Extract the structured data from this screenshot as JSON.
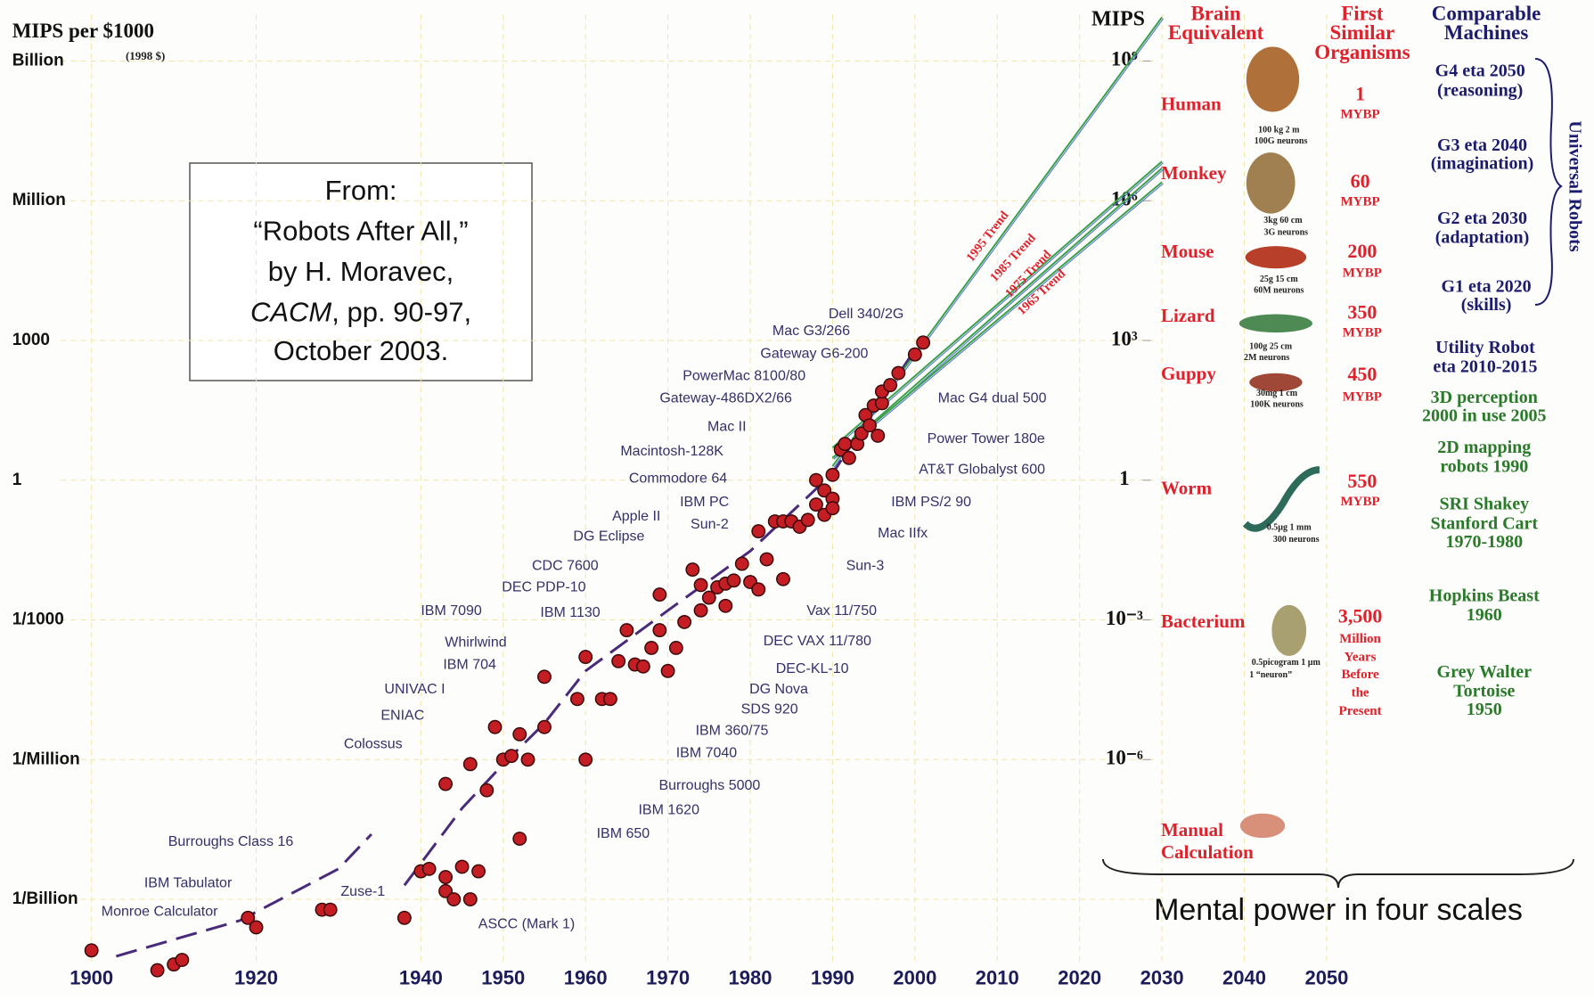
{
  "chart_data": {
    "type": "scatter",
    "title": "MIPS per $1000",
    "subtitle": "(1998 $)",
    "y2_label": "MIPS",
    "color": "#c41e24",
    "log_scale": true,
    "grid": true,
    "xlim": [
      1890,
      2060
    ],
    "xticks": [
      1900,
      1920,
      1940,
      1950,
      1960,
      1970,
      1980,
      1990,
      2000,
      2010,
      2020,
      2030,
      2040,
      2050
    ],
    "ylim": [
      1e-11,
      10000000000.0
    ],
    "yticks": [
      {
        "value": 1000000000.0,
        "label": "Billion"
      },
      {
        "value": 1000000.0,
        "label": "Million"
      },
      1000,
      1,
      {
        "value": 0.001,
        "label": "1/1000"
      },
      {
        "value": 1e-06,
        "label": "1/Million"
      },
      {
        "value": 1e-09,
        "label": "1/Billion"
      }
    ],
    "y2lim": [
      1e-11,
      10000000000.0
    ],
    "y2ticks": [
      {
        "value": 1000000000.0,
        "label": "10⁹"
      },
      {
        "value": 1000000.0,
        "label": "10⁶"
      },
      {
        "value": 1000,
        "label": "10³"
      },
      1,
      {
        "value": 0.001,
        "label": "10⁻³"
      },
      {
        "value": 1e-06,
        "label": "10⁻⁶"
      }
    ],
    "x": [
      1900,
      1908,
      1910,
      1911,
      1919,
      1920,
      1928,
      1929,
      1938,
      1940,
      1941,
      1943,
      1943,
      1944,
      1946,
      1945,
      1947,
      1943,
      1946,
      1948,
      1949,
      1950,
      1951,
      1952,
      1953,
      1955,
      1952,
      1955,
      1959,
      1960,
      1960,
      1962,
      1963,
      1964,
      1965,
      1966,
      1967,
      1968,
      1969,
      1969,
      1970,
      1971,
      1972,
      1973,
      1974,
      1974,
      1975,
      1976,
      1977,
      1977,
      1978,
      1979,
      1980,
      1981,
      1981,
      1982,
      1983,
      1984,
      1984,
      1985,
      1986,
      1987,
      1988,
      1988,
      1989,
      1989,
      1990,
      1990,
      1990,
      1991,
      1991.5,
      1992,
      1993,
      1993.5,
      1994,
      1994.5,
      1995,
      1995.5,
      1996,
      1996,
      1997,
      1998,
      2000,
      2001
    ],
    "values": [
      8e-11,
      3e-11,
      4e-11,
      5e-11,
      4e-10,
      2.5e-10,
      6e-10,
      6e-10,
      4e-10,
      4e-09,
      4.5e-09,
      3e-09,
      1.5e-09,
      1e-09,
      1e-09,
      5e-09,
      4e-09,
      3e-07,
      8e-07,
      2.2e-07,
      5e-06,
      1e-06,
      1.2e-06,
      3.5e-06,
      1e-06,
      5e-06,
      2e-08,
      6e-05,
      2e-05,
      0.00016,
      1e-06,
      2e-05,
      2e-05,
      0.00013,
      0.0006,
      0.00011,
      0.0001,
      0.00025,
      0.0006,
      0.0035,
      8e-05,
      0.00025,
      0.0009,
      0.012,
      0.0016,
      0.0056,
      0.003,
      0.005,
      0.006,
      0.002,
      0.007,
      0.016,
      0.0065,
      0.0045,
      0.08,
      0.02,
      0.13,
      0.0075,
      0.13,
      0.13,
      0.1,
      0.14,
      0.3,
      1,
      0.6,
      0.18,
      0.4,
      1.3,
      0.25,
      4.5,
      6,
      3,
      6,
      10,
      25,
      15,
      40,
      9,
      45,
      80,
      110,
      200,
      500,
      900
    ],
    "curve": {
      "color": "#4a2a7a",
      "x": [
        1903,
        1918,
        1930,
        1934,
        null,
        1938,
        1945,
        1950,
        1955,
        1960,
        1970,
        1980,
        1990,
        2000
      ],
      "values": [
        6e-11,
        3.5e-10,
        4.5e-09,
        2.5e-08,
        null,
        2e-09,
        9e-08,
        8e-07,
        6e-06,
        8e-05,
        0.0016,
        0.03,
        1.4,
        630
      ]
    },
    "trends": [
      {
        "name": "1995 Trend",
        "color": "#3aa04a",
        "x": [
          1990,
          2030
        ],
        "values": [
          2,
          8700000000.0
        ]
      },
      {
        "name": "1985 Trend",
        "color": "#3aa04a",
        "x": [
          1990,
          2030
        ],
        "values": [
          5,
          7000000.0
        ]
      },
      {
        "name": "1975 Trend",
        "color": "#3aa04a",
        "x": [
          1990,
          2030
        ],
        "values": [
          3,
          5000000.0
        ]
      },
      {
        "name": "1965 Trend",
        "color": "#3aa04a",
        "x": [
          1990,
          2030
        ],
        "values": [
          3,
          2500000.0
        ]
      }
    ],
    "annotations": [
      "Dell 340/2G",
      "Mac G3/266",
      "Gateway G6-200",
      "PowerMac 8100/80",
      "Gateway-486DX2/66",
      "Mac G4 dual 500",
      "Mac II",
      "Power Tower 180e",
      "Macintosh-128K",
      "AT&T Globalyst 600",
      "Commodore 64",
      "IBM PC",
      "IBM PS/2 90",
      "Apple II",
      "Sun-2",
      "DG Eclipse",
      "Mac IIfx",
      "CDC 7600",
      "Sun-3",
      "DEC PDP-10",
      "IBM 7090",
      "IBM 1130",
      "Vax 11/750",
      "Whirlwind",
      "DEC VAX 11/780",
      "IBM 704",
      "DEC-KL-10",
      "UNIVAC I",
      "DG Nova",
      "ENIAC",
      "SDS 920",
      "IBM 360/75",
      "Colossus",
      "IBM 7040",
      "Burroughs 5000",
      "IBM 1620",
      "IBM 650",
      "Burroughs Class 16",
      "IBM Tabulator",
      "Zuse-1",
      "Monroe Calculator",
      "ASCC (Mark 1)"
    ]
  },
  "panel": {
    "headers": [
      [
        "Brain",
        "Equivalent"
      ],
      [
        "First",
        "Similar",
        "Organisms"
      ],
      [
        "Comparable",
        "Machines"
      ]
    ],
    "organisms": [
      {
        "name": [
          "Human"
        ],
        "details": [
          "100 kg    2 m",
          "100G neurons"
        ],
        "age": [
          "1",
          "MYBP"
        ]
      },
      {
        "name": [
          "Monkey"
        ],
        "details": [
          "3kg   60 cm",
          "3G neurons"
        ],
        "age": [
          "60",
          "MYBP"
        ]
      },
      {
        "name": [
          "Mouse"
        ],
        "details": [
          "25g    15 cm",
          "60M neurons"
        ],
        "age": [
          "200",
          "MYBP"
        ]
      },
      {
        "name": [
          "Lizard"
        ],
        "details": [
          "100g   25 cm",
          "2M neurons"
        ],
        "age": [
          "350",
          "MYBP"
        ]
      },
      {
        "name": [
          "Guppy"
        ],
        "details": [
          "30mg    1 cm",
          "100K neurons"
        ],
        "age": [
          "450",
          "MYBP"
        ]
      },
      {
        "name": [
          "Worm"
        ],
        "details": [
          "0.5µg  1 mm",
          "300 neurons"
        ],
        "age": [
          "550",
          "MYBP"
        ]
      },
      {
        "name": [
          "Bacterium"
        ],
        "details": [
          "0.5picogram 1 µm",
          "1 “neuron”"
        ],
        "age": [
          "3,500",
          "Million",
          "Years",
          "Before",
          "the",
          "Present"
        ]
      },
      {
        "name": [
          "Manual",
          "Calculation"
        ],
        "details": [],
        "age": []
      }
    ],
    "machines": [
      {
        "lines": [
          "G4 eta 2050",
          "(reasoning)"
        ],
        "color": "#1c1c6e"
      },
      {
        "lines": [
          "G3 eta 2040",
          "(imagination)"
        ],
        "color": "#1c1c6e"
      },
      {
        "lines": [
          "G2 eta 2030",
          "(adaptation)"
        ],
        "color": "#1c1c6e"
      },
      {
        "lines": [
          "G1 eta 2020",
          "(skills)"
        ],
        "color": "#1c1c6e"
      },
      {
        "lines": [
          "Utility Robot",
          "eta 2010-2015"
        ],
        "color": "#1c1c6e"
      },
      {
        "lines": [
          "3D perception",
          "2000 in use 2005"
        ],
        "color": "#2a7a2a"
      },
      {
        "lines": [
          "2D mapping",
          "robots 1990"
        ],
        "color": "#2a7a2a"
      },
      {
        "lines": [
          "SRI Shakey",
          "Stanford Cart",
          "1970-1980"
        ],
        "color": "#2a7a2a"
      },
      {
        "lines": [
          "Hopkins Beast",
          "1960"
        ],
        "color": "#2a7a2a"
      },
      {
        "lines": [
          "Grey Walter",
          "Tortoise",
          "1950"
        ],
        "color": "#2a7a2a"
      }
    ],
    "universal": "Universal Robots",
    "caption": "Mental power in four scales"
  },
  "source": {
    "lines": [
      "From:",
      "“Robots After All,”",
      "by H. Moravec,"
    ],
    "journal": "CACM",
    "pages": ", pp. 90-97,",
    "date": "October 2003."
  }
}
